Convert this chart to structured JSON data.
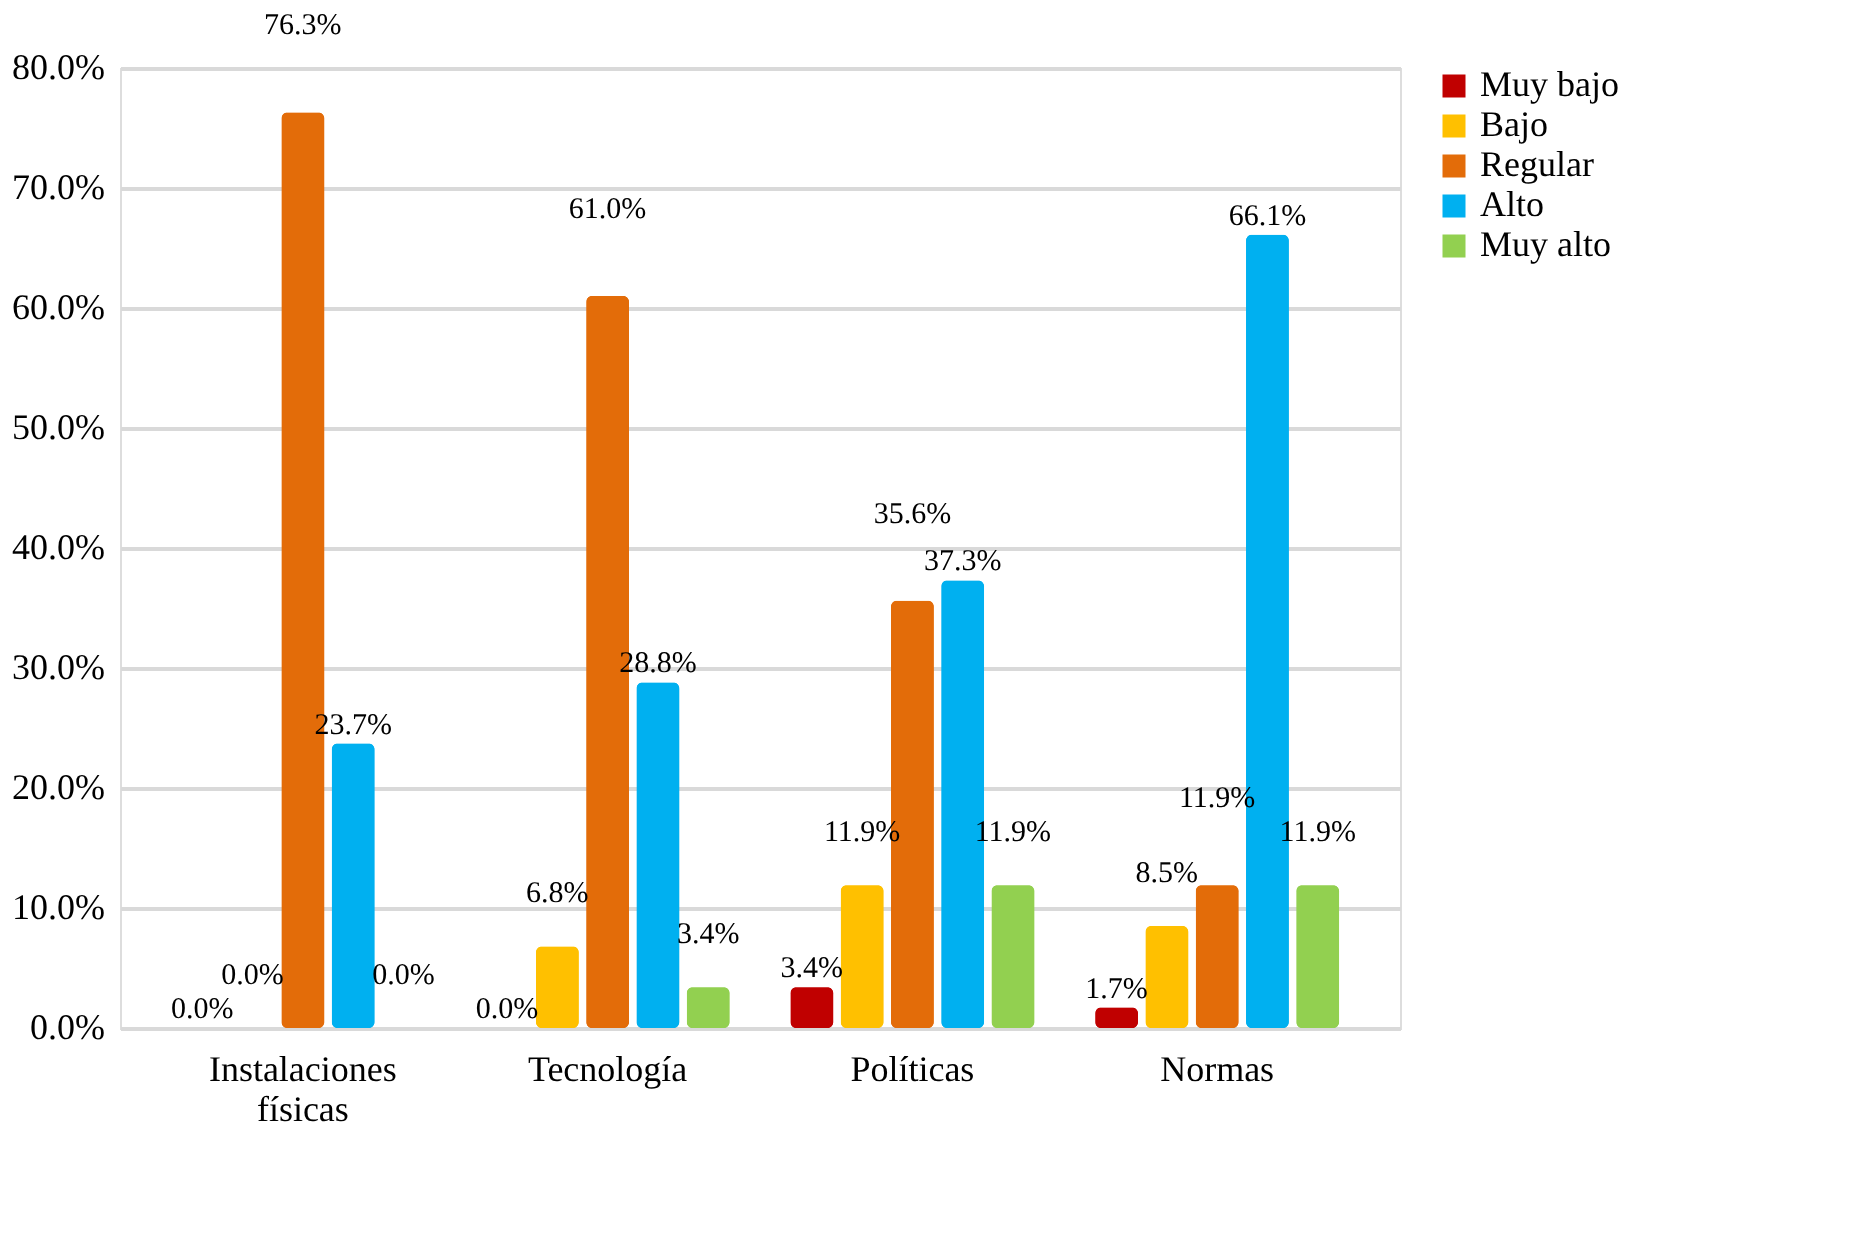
{
  "chart_data": {
    "type": "bar",
    "categories": [
      "Instalaciones físicas",
      "Tecnología",
      "Políticas",
      "Normas"
    ],
    "series": [
      {
        "name": "Muy bajo",
        "color": "#c00000",
        "values": [
          0.0,
          0.0,
          3.4,
          1.7
        ],
        "value_labels": [
          "0.0%",
          "0.0%",
          "3.4%",
          "1.7%"
        ]
      },
      {
        "name": "Bajo",
        "color": "#ffc000",
        "values": [
          0.0,
          6.8,
          11.9,
          8.5
        ],
        "value_labels": [
          "0.0%",
          "6.8%",
          "11.9%",
          "8.5%"
        ]
      },
      {
        "name": "Regular",
        "color": "#e36c09",
        "values": [
          76.3,
          61.0,
          35.6,
          11.9
        ],
        "value_labels": [
          "76.3%",
          "61.0%",
          "35.6%",
          "11.9%"
        ]
      },
      {
        "name": "Alto",
        "color": "#00b0f0",
        "values": [
          23.7,
          28.8,
          37.3,
          66.1
        ],
        "value_labels": [
          "23.7%",
          "28.8%",
          "37.3%",
          "66.1%"
        ]
      },
      {
        "name": "Muy alto",
        "color": "#92d050",
        "values": [
          0.0,
          3.4,
          11.9,
          11.9
        ],
        "value_labels": [
          "0.0%",
          "3.4%",
          "11.9%",
          "11.9%"
        ]
      }
    ],
    "ylim": [
      0,
      80
    ],
    "yticks": [
      {
        "value": 0,
        "label": "0.0%"
      },
      {
        "value": 10,
        "label": "10.0%"
      },
      {
        "value": 20,
        "label": "20.0%"
      },
      {
        "value": 30,
        "label": "30.0%"
      },
      {
        "value": 40,
        "label": "40.0%"
      },
      {
        "value": 50,
        "label": "50.0%"
      },
      {
        "value": 60,
        "label": "60.0%"
      },
      {
        "value": 70,
        "label": "70.0%"
      },
      {
        "value": 80,
        "label": "80.0%"
      }
    ],
    "grid": "y",
    "legend": "right"
  }
}
